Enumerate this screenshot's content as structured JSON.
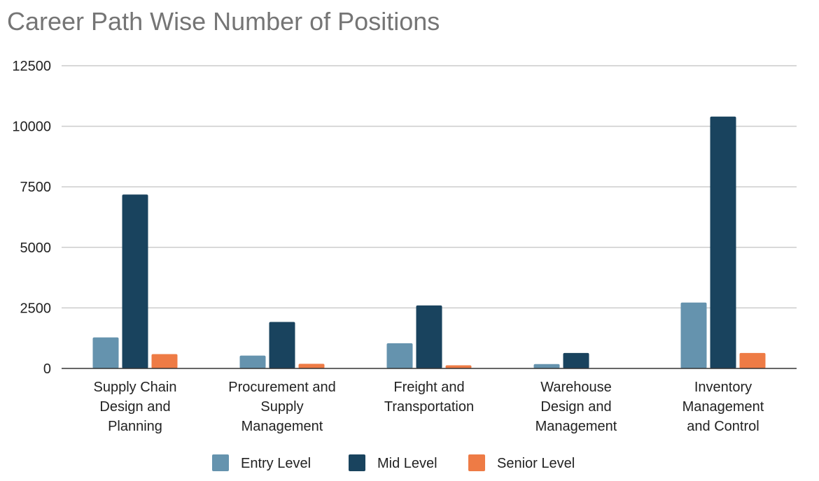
{
  "chart_data": {
    "type": "bar",
    "title": "Career Path Wise Number of Positions",
    "categories": [
      [
        "Supply Chain",
        "Design and",
        "Planning"
      ],
      [
        "Procurement and",
        "Supply",
        "Management"
      ],
      [
        "Freight and",
        "Transportation"
      ],
      [
        "Warehouse",
        "Design and",
        "Management"
      ],
      [
        "Inventory",
        "Management",
        "and Control"
      ]
    ],
    "series": [
      {
        "name": "Entry Level",
        "color": "#6593ae",
        "values": [
          1280,
          530,
          1040,
          180,
          2720
        ]
      },
      {
        "name": "Mid Level",
        "color": "#19435e",
        "values": [
          7180,
          1920,
          2600,
          640,
          10400
        ]
      },
      {
        "name": "Senior Level",
        "color": "#ee7b45",
        "values": [
          590,
          190,
          130,
          0,
          640
        ]
      }
    ],
    "ylim": [
      0,
      12500
    ],
    "yticks": [
      "0",
      "2500",
      "5000",
      "7500",
      "10000",
      "12500"
    ],
    "grid": true,
    "legend_position": "bottom"
  }
}
